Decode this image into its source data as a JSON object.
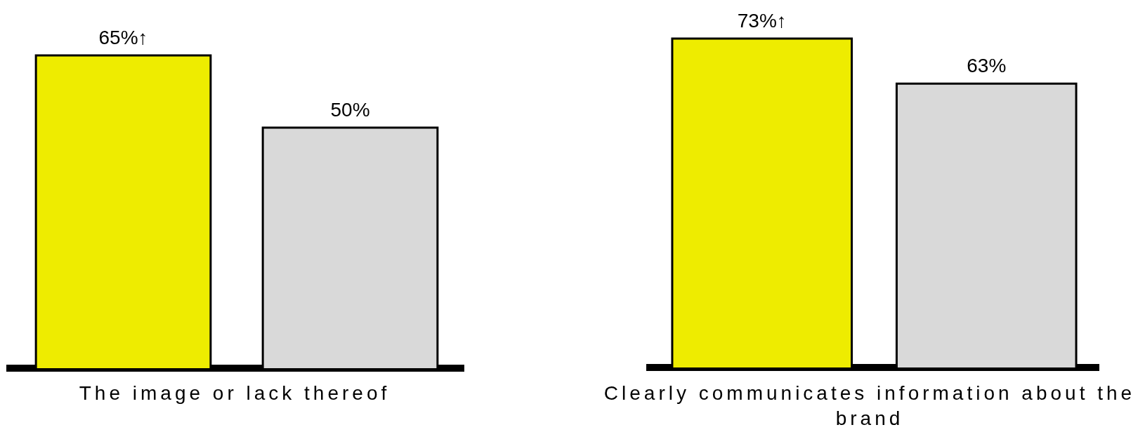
{
  "chart_data": [
    {
      "type": "bar",
      "xlabel": "The image or lack thereof",
      "categories": [
        null,
        null
      ],
      "values": [
        65,
        50
      ],
      "colors": [
        "#eeec00",
        "#d9d9d9"
      ],
      "value_labels": [
        "65%↑",
        "50%"
      ],
      "tick_labels": false
    },
    {
      "type": "bar",
      "xlabel": "Clearly communicates information about the brand",
      "categories": [
        null,
        null
      ],
      "values": [
        73,
        63
      ],
      "colors": [
        "#eeec00",
        "#d9d9d9"
      ],
      "value_labels": [
        "73%↑",
        "63%"
      ],
      "tick_labels": false
    }
  ]
}
